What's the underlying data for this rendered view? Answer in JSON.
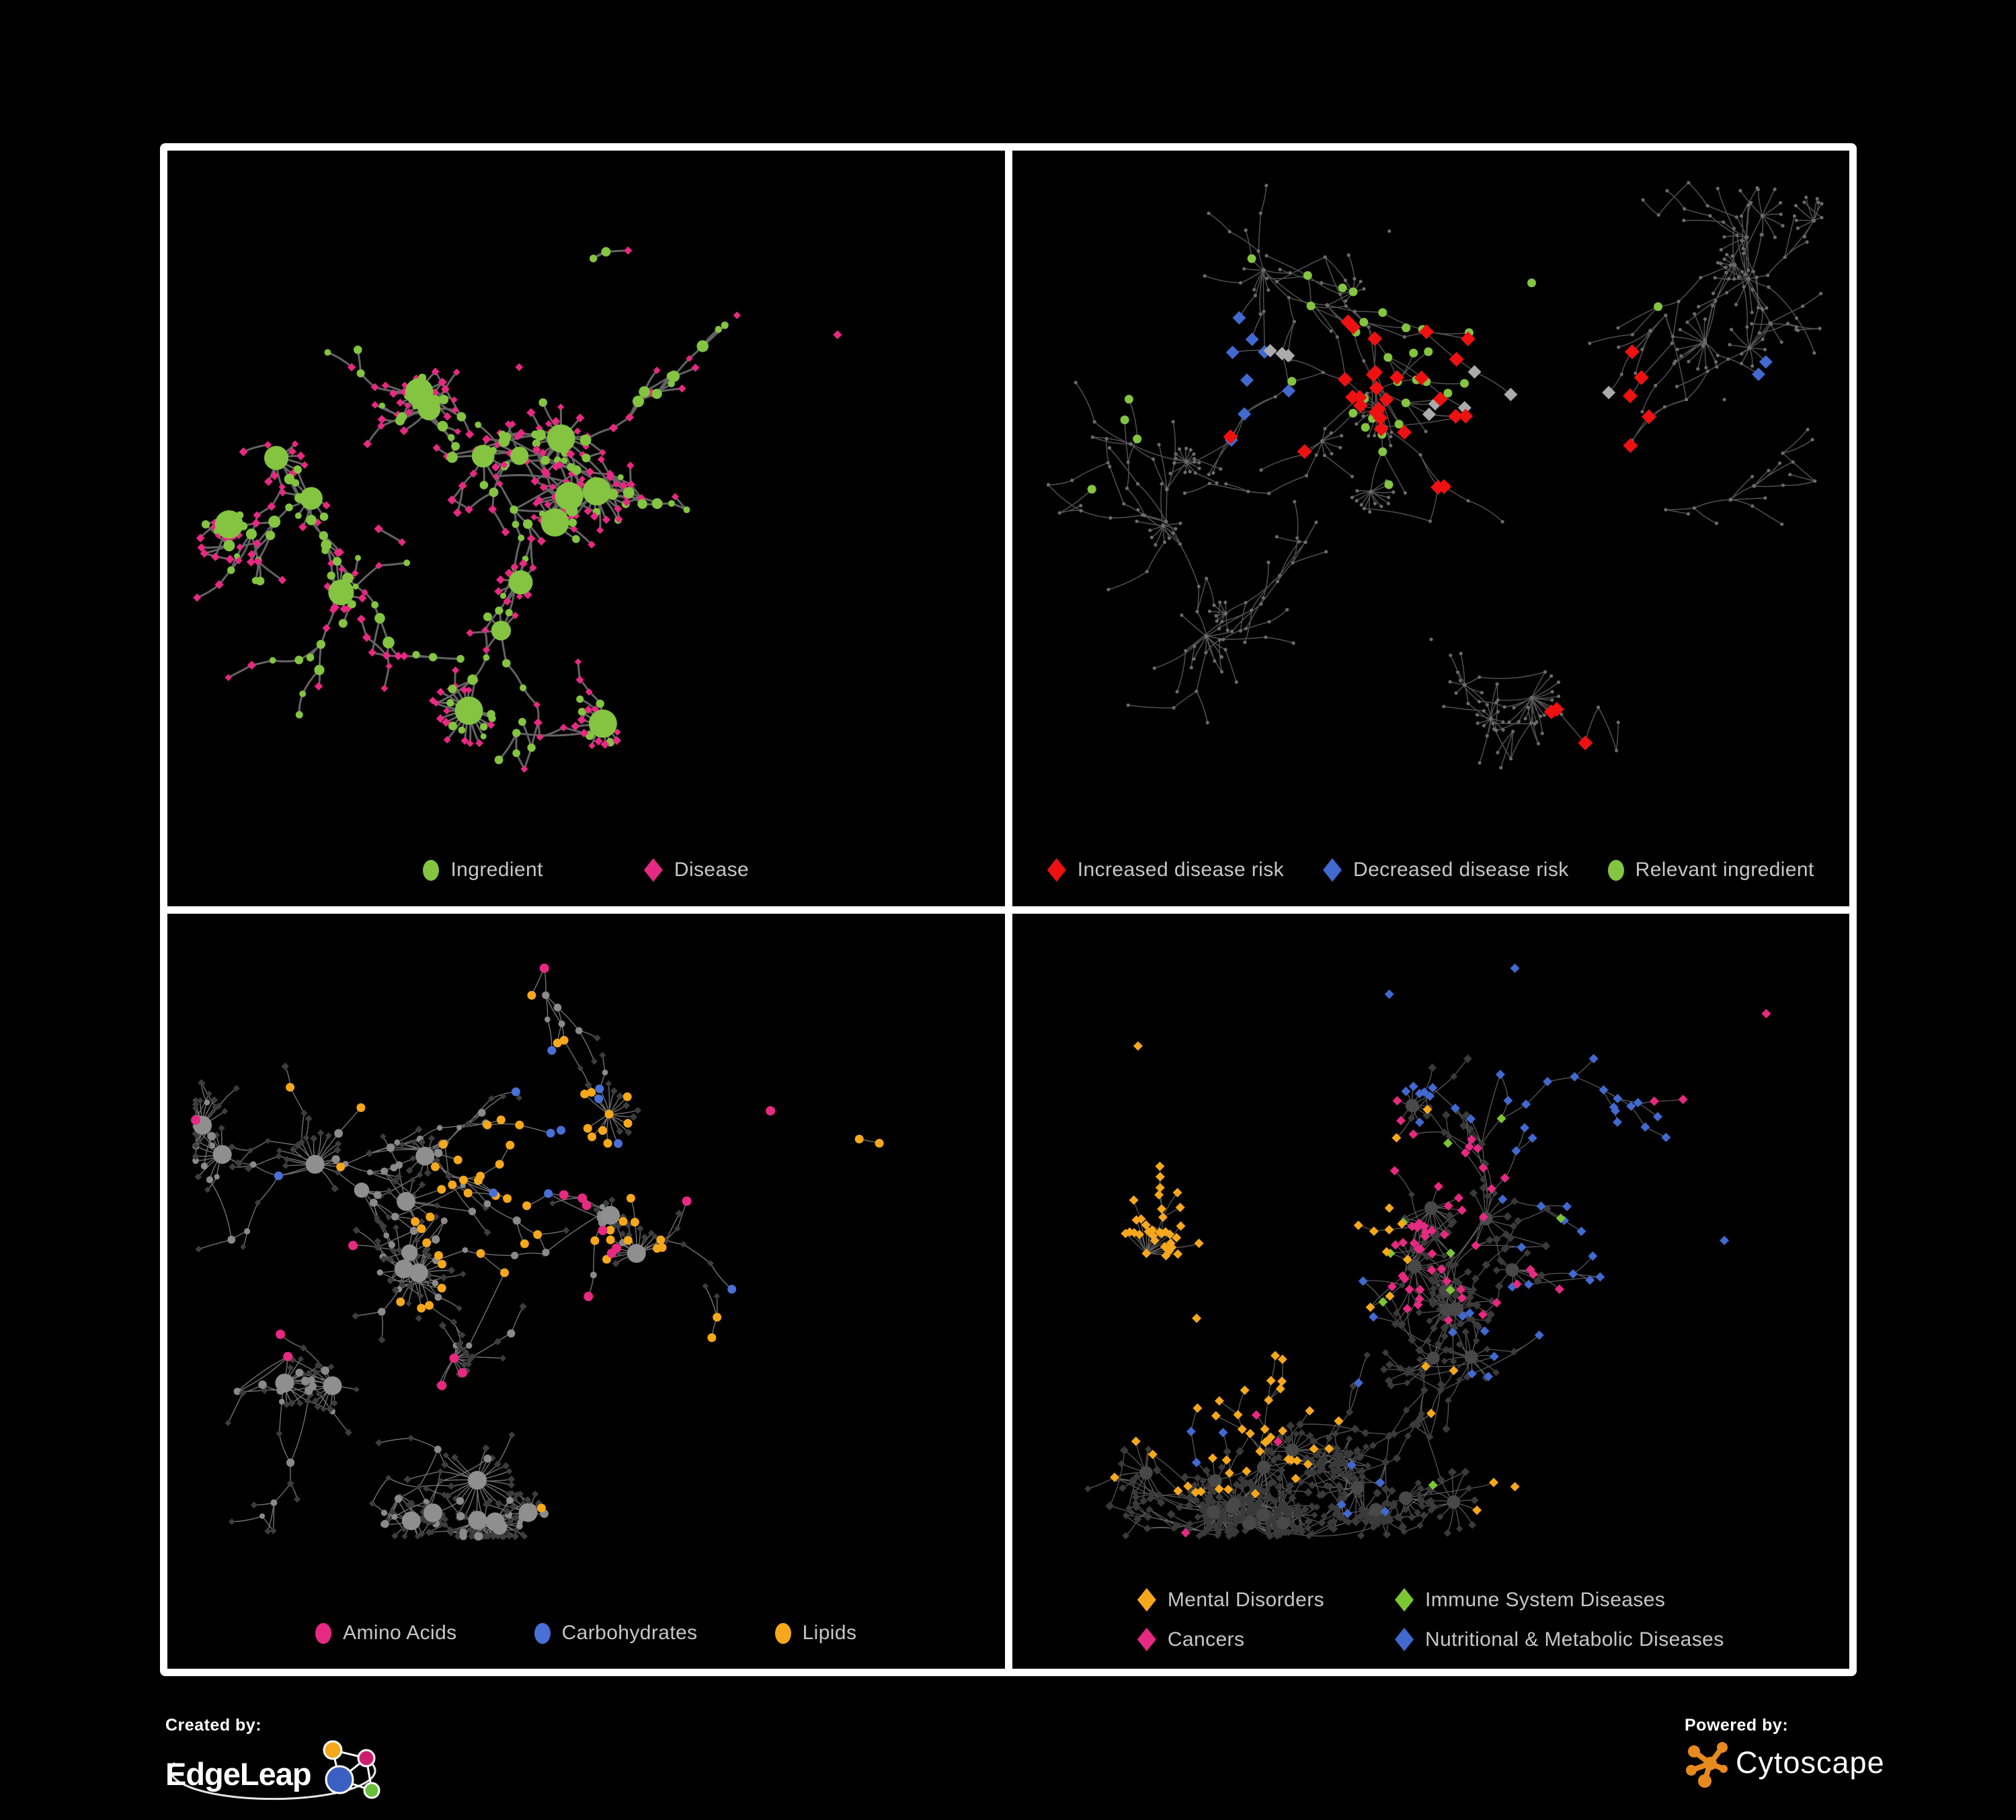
{
  "branding": {
    "created_by_label": "Created by:",
    "edgeleap_name": "EdgeLeap",
    "powered_by_label": "Powered by:",
    "cytoscape_name": "Cytoscape"
  },
  "colors": {
    "background": "#000000",
    "frame": "#ffffff",
    "legend_text": "#c7c7c7",
    "ingredient_green": "#84c440",
    "disease_pink": "#e62981",
    "risk_red": "#ee1111",
    "risk_blue": "#4169d0",
    "neutral_gray": "#ababab",
    "carb_blue": "#4a6fd6",
    "lipid_orange": "#f5a81c",
    "immune_green": "#7cc633",
    "cytoscape_orange": "#e78a1e"
  },
  "panels": [
    {
      "id": "ingredient-disease",
      "legend": [
        {
          "shape": "circle",
          "color": "#84c440",
          "label": "Ingredient"
        },
        {
          "shape": "diamond",
          "color": "#e62981",
          "label": "Disease"
        }
      ],
      "network": {
        "seed": 11,
        "nodes": 420,
        "step": 30,
        "starProb": 0.06,
        "starMin": 6,
        "starMax": 16,
        "crossFrac": 0.1,
        "edgeColor": "#6e6e6e",
        "edgeWidth": 3.0,
        "edgeOpacity": 0.9,
        "style": "p1",
        "clusters": [
          [
            0.33,
            0.38
          ],
          [
            0.22,
            0.33
          ],
          [
            0.28,
            0.6
          ],
          [
            0.42,
            0.33
          ],
          [
            0.5,
            0.47
          ],
          [
            0.68,
            0.25
          ],
          [
            0.8,
            0.28
          ],
          [
            0.62,
            0.55
          ],
          [
            0.35,
            0.78
          ],
          [
            0.12,
            0.45
          ],
          [
            0.55,
            0.15
          ]
        ],
        "fans": [
          [
            0.36,
            0.86,
            22,
            42
          ],
          [
            0.52,
            0.88,
            14,
            34
          ],
          [
            0.13,
            0.47,
            10,
            34
          ],
          [
            0.47,
            0.44,
            16,
            36
          ]
        ],
        "highlights": []
      }
    },
    {
      "id": "disease-risk",
      "legend": [
        {
          "shape": "diamond",
          "color": "#ee1111",
          "label": "Increased disease risk"
        },
        {
          "shape": "diamond",
          "color": "#4169d0",
          "label": "Decreased disease risk"
        },
        {
          "shape": "circle",
          "color": "#84c440",
          "label": "Relevant ingredient"
        }
      ],
      "network": {
        "seed": 22,
        "nodes": 520,
        "step": 44,
        "starProb": 0.045,
        "starMin": 5,
        "starMax": 14,
        "crossFrac": 0.05,
        "edgeColor": "#5e5e5e",
        "edgeWidth": 1.5,
        "edgeOpacity": 0.85,
        "style": "p2",
        "clusters": [
          [
            0.28,
            0.35
          ],
          [
            0.52,
            0.37
          ],
          [
            0.45,
            0.12
          ],
          [
            0.62,
            0.2
          ],
          [
            0.78,
            0.25
          ],
          [
            0.85,
            0.38
          ],
          [
            0.35,
            0.6
          ],
          [
            0.5,
            0.75
          ],
          [
            0.25,
            0.8
          ],
          [
            0.78,
            0.55
          ],
          [
            0.15,
            0.55
          ]
        ],
        "fans": [
          [
            0.62,
            0.84,
            18,
            42
          ],
          [
            0.3,
            0.18,
            8,
            32
          ],
          [
            0.88,
            0.3,
            9,
            30
          ]
        ],
        "highlights": [
          {
            "shape": "d",
            "color": "#ee1111",
            "size": 11,
            "groups": [
              [
                0.42,
                0.33,
                14,
                0.1
              ],
              [
                0.55,
                0.38,
                12,
                0.12
              ],
              [
                0.68,
                0.4,
                5,
                0.05
              ],
              [
                0.75,
                0.74,
                3,
                0.04
              ],
              [
                0.3,
                0.44,
                2,
                0.03
              ]
            ]
          },
          {
            "shape": "d",
            "color": "#4169d0",
            "size": 10,
            "groups": [
              [
                0.26,
                0.36,
                8,
                0.06
              ],
              [
                0.9,
                0.37,
                2,
                0.02
              ]
            ]
          },
          {
            "shape": "d",
            "color": "#ababab",
            "size": 10,
            "groups": [
              [
                0.29,
                0.3,
                3,
                0.05
              ],
              [
                0.52,
                0.4,
                4,
                0.08
              ],
              [
                0.62,
                0.43,
                2,
                0.03
              ]
            ]
          },
          {
            "shape": "c",
            "color": "#84c440",
            "size": 6.5,
            "groups": [
              [
                0.38,
                0.33,
                12,
                0.1
              ],
              [
                0.55,
                0.35,
                14,
                0.1
              ],
              [
                0.17,
                0.28,
                4,
                0.08
              ],
              [
                0.1,
                0.5,
                1,
                0.01
              ],
              [
                0.62,
                0.3,
                4,
                0.06
              ]
            ]
          }
        ]
      }
    },
    {
      "id": "nutrient-classes",
      "legend": [
        {
          "shape": "circle",
          "color": "#e62981",
          "label": "Amino Acids"
        },
        {
          "shape": "circle",
          "color": "#4a6fd6",
          "label": "Carbohydrates"
        },
        {
          "shape": "circle",
          "color": "#f5a81c",
          "label": "Lipids"
        }
      ],
      "network": {
        "seed": 33,
        "nodes": 540,
        "step": 32,
        "starProb": 0.06,
        "starMin": 6,
        "starMax": 20,
        "crossFrac": 0.12,
        "edgeColor": "#8f8f8f",
        "edgeWidth": 1.4,
        "edgeOpacity": 0.8,
        "style": "p3",
        "clusters": [
          [
            0.2,
            0.42
          ],
          [
            0.38,
            0.45
          ],
          [
            0.42,
            0.28
          ],
          [
            0.47,
            0.33
          ],
          [
            0.55,
            0.5
          ],
          [
            0.3,
            0.62
          ],
          [
            0.72,
            0.3
          ],
          [
            0.85,
            0.35
          ],
          [
            0.65,
            0.65
          ],
          [
            0.15,
            0.72
          ],
          [
            0.45,
            0.08
          ]
        ],
        "fans": [
          [
            0.37,
            0.87,
            26,
            46
          ],
          [
            0.3,
            0.55,
            18,
            40
          ],
          [
            0.14,
            0.72,
            12,
            34
          ],
          [
            0.56,
            0.52,
            16,
            36
          ]
        ],
        "highlights": [
          {
            "shape": "c",
            "color": "#f5a81c",
            "size": 6.5,
            "groups": [
              [
                0.47,
                0.3,
                26,
                0.1
              ],
              [
                0.36,
                0.47,
                16,
                0.1
              ],
              [
                0.55,
                0.52,
                8,
                0.05
              ],
              [
                0.3,
                0.62,
                4,
                0.05
              ],
              [
                0.6,
                0.78,
                3,
                0.08
              ],
              [
                0.2,
                0.3,
                3,
                0.15
              ],
              [
                0.85,
                0.3,
                2,
                0.1
              ]
            ]
          },
          {
            "shape": "c",
            "color": "#4a6fd6",
            "size": 6.5,
            "groups": [
              [
                0.47,
                0.3,
                7,
                0.06
              ],
              [
                0.12,
                0.42,
                1,
                0.01
              ],
              [
                0.85,
                0.62,
                1,
                0.01
              ],
              [
                0.42,
                0.45,
                2,
                0.04
              ]
            ]
          },
          {
            "shape": "c",
            "color": "#e62981",
            "size": 7,
            "groups": [
              [
                0.15,
                0.55,
                3,
                0.12
              ],
              [
                0.3,
                0.75,
                3,
                0.1
              ],
              [
                0.55,
                0.65,
                4,
                0.1
              ],
              [
                0.75,
                0.35,
                2,
                0.08
              ],
              [
                0.42,
                0.08,
                1,
                0.01
              ],
              [
                0.05,
                0.3,
                1,
                0.01
              ],
              [
                0.5,
                0.42,
                3,
                0.06
              ]
            ]
          }
        ]
      }
    },
    {
      "id": "disease-categories",
      "legend": [
        {
          "shape": "diamond",
          "color": "#f5a81c",
          "label": "Mental Disorders"
        },
        {
          "shape": "diamond",
          "color": "#7cc633",
          "label": "Immune System Diseases"
        },
        {
          "shape": "diamond",
          "color": "#e62981",
          "label": "Cancers"
        },
        {
          "shape": "diamond",
          "color": "#4169d0",
          "label": "Nutritional & Metabolic Diseases"
        }
      ],
      "network": {
        "seed": 44,
        "nodes": 780,
        "step": 30,
        "starProb": 0.05,
        "starMin": 6,
        "starMax": 16,
        "crossFrac": 0.15,
        "edgeColor": "#7d7d7d",
        "edgeWidth": 1.2,
        "edgeOpacity": 0.75,
        "style": "p4",
        "clusters": [
          [
            0.17,
            0.5
          ],
          [
            0.22,
            0.62
          ],
          [
            0.45,
            0.45
          ],
          [
            0.52,
            0.35
          ],
          [
            0.45,
            0.12
          ],
          [
            0.6,
            0.08
          ],
          [
            0.72,
            0.3
          ],
          [
            0.85,
            0.5
          ],
          [
            0.45,
            0.8
          ],
          [
            0.6,
            0.88
          ],
          [
            0.25,
            0.85
          ],
          [
            0.15,
            0.2
          ],
          [
            0.9,
            0.15
          ]
        ],
        "fans": [
          [
            0.16,
            0.52,
            20,
            40
          ],
          [
            0.5,
            0.45,
            16,
            36
          ],
          [
            0.3,
            0.85,
            12,
            34
          ]
        ],
        "highlights": [
          {
            "shape": "d",
            "color": "#f5a81c",
            "size": 7,
            "groups": [
              [
                0.16,
                0.52,
                55,
                0.1
              ],
              [
                0.24,
                0.62,
                25,
                0.08
              ],
              [
                0.35,
                0.45,
                6,
                0.06
              ],
              [
                0.5,
                0.72,
                3,
                0.05
              ],
              [
                0.12,
                0.18,
                3,
                0.08
              ],
              [
                0.6,
                0.95,
                2,
                0.03
              ],
              [
                0.78,
                0.88,
                1,
                0.01
              ]
            ]
          },
          {
            "shape": "d",
            "color": "#e62981",
            "size": 7,
            "groups": [
              [
                0.46,
                0.52,
                28,
                0.09
              ],
              [
                0.55,
                0.42,
                14,
                0.07
              ],
              [
                0.35,
                0.3,
                4,
                0.05
              ],
              [
                0.62,
                0.6,
                6,
                0.05
              ],
              [
                0.3,
                0.78,
                2,
                0.03
              ],
              [
                0.92,
                0.28,
                3,
                0.03
              ],
              [
                0.2,
                0.95,
                1,
                0.01
              ]
            ]
          },
          {
            "shape": "d",
            "color": "#4169d0",
            "size": 7,
            "groups": [
              [
                0.72,
                0.35,
                14,
                0.08
              ],
              [
                0.82,
                0.22,
                8,
                0.06
              ],
              [
                0.62,
                0.1,
                6,
                0.06
              ],
              [
                0.3,
                0.1,
                4,
                0.06
              ],
              [
                0.88,
                0.55,
                8,
                0.06
              ],
              [
                0.75,
                0.72,
                6,
                0.08
              ],
              [
                0.42,
                0.88,
                5,
                0.06
              ],
              [
                0.22,
                0.72,
                3,
                0.05
              ],
              [
                0.55,
                0.62,
                4,
                0.05
              ],
              [
                0.08,
                0.3,
                2,
                0.04
              ],
              [
                0.35,
                0.62,
                2,
                0.03
              ]
            ]
          },
          {
            "shape": "d",
            "color": "#7cc633",
            "size": 7,
            "groups": [
              [
                0.45,
                0.4,
                2,
                0.04
              ],
              [
                0.52,
                0.55,
                2,
                0.05
              ],
              [
                0.4,
                0.62,
                1,
                0.02
              ],
              [
                0.75,
                0.45,
                1,
                0.02
              ],
              [
                0.3,
                0.4,
                1,
                0.02
              ],
              [
                0.6,
                0.3,
                1,
                0.02
              ],
              [
                0.5,
                0.85,
                1,
                0.02
              ]
            ]
          }
        ]
      }
    }
  ]
}
